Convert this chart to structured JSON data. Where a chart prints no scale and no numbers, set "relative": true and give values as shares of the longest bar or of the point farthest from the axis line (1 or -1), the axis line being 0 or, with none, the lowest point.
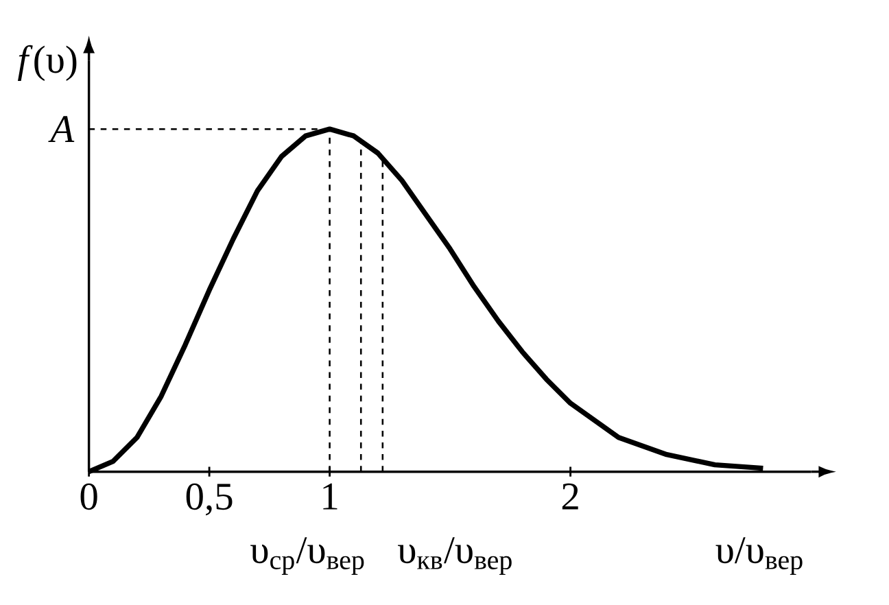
{
  "chart_data": {
    "type": "line",
    "xlabel": "υ/υ$_{вер}$",
    "ylabel": "*f*(υ)",
    "xlim": [
      0,
      3
    ],
    "relative": true,
    "annotations": [
      {
        "text": "A",
        "x": 0,
        "y": 1
      }
    ],
    "xticks": [
      {
        "value": 0,
        "label": "0"
      },
      {
        "value": 0.5,
        "label": "0,5"
      },
      {
        "value": 1,
        "label": "1"
      },
      {
        "value": 2,
        "label": "2"
      }
    ],
    "line_style": "solid",
    "series": [
      {
        "color": "#000000",
        "x": [
          0,
          0.1,
          0.2,
          0.3,
          0.4,
          0.5,
          0.6,
          0.7,
          0.8,
          0.9,
          1.0,
          1.1,
          1.2,
          1.3,
          1.4,
          1.5,
          1.6,
          1.7,
          1.8,
          1.9,
          2.0,
          2.2,
          2.4,
          2.6,
          2.8
        ],
        "values": [
          0,
          0.03,
          0.1,
          0.22,
          0.37,
          0.53,
          0.68,
          0.82,
          0.92,
          0.98,
          1.0,
          0.98,
          0.93,
          0.85,
          0.75,
          0.65,
          0.54,
          0.44,
          0.35,
          0.27,
          0.2,
          0.1,
          0.05,
          0.02,
          0.01
        ]
      }
    ],
    "ref_lines": [
      {
        "axis": "y",
        "value": 1,
        "line_style": "dashed"
      },
      {
        "axis": "x",
        "value": 1,
        "line_style": "dashed"
      },
      {
        "axis": "x",
        "value": 1.13,
        "label": "υ$_{ср}$/υ$_{вер}$",
        "line_style": "dashed"
      },
      {
        "axis": "x",
        "value": 1.22,
        "label": "υ$_{кв}$/υ$_{вер}$",
        "line_style": "dashed"
      }
    ]
  }
}
